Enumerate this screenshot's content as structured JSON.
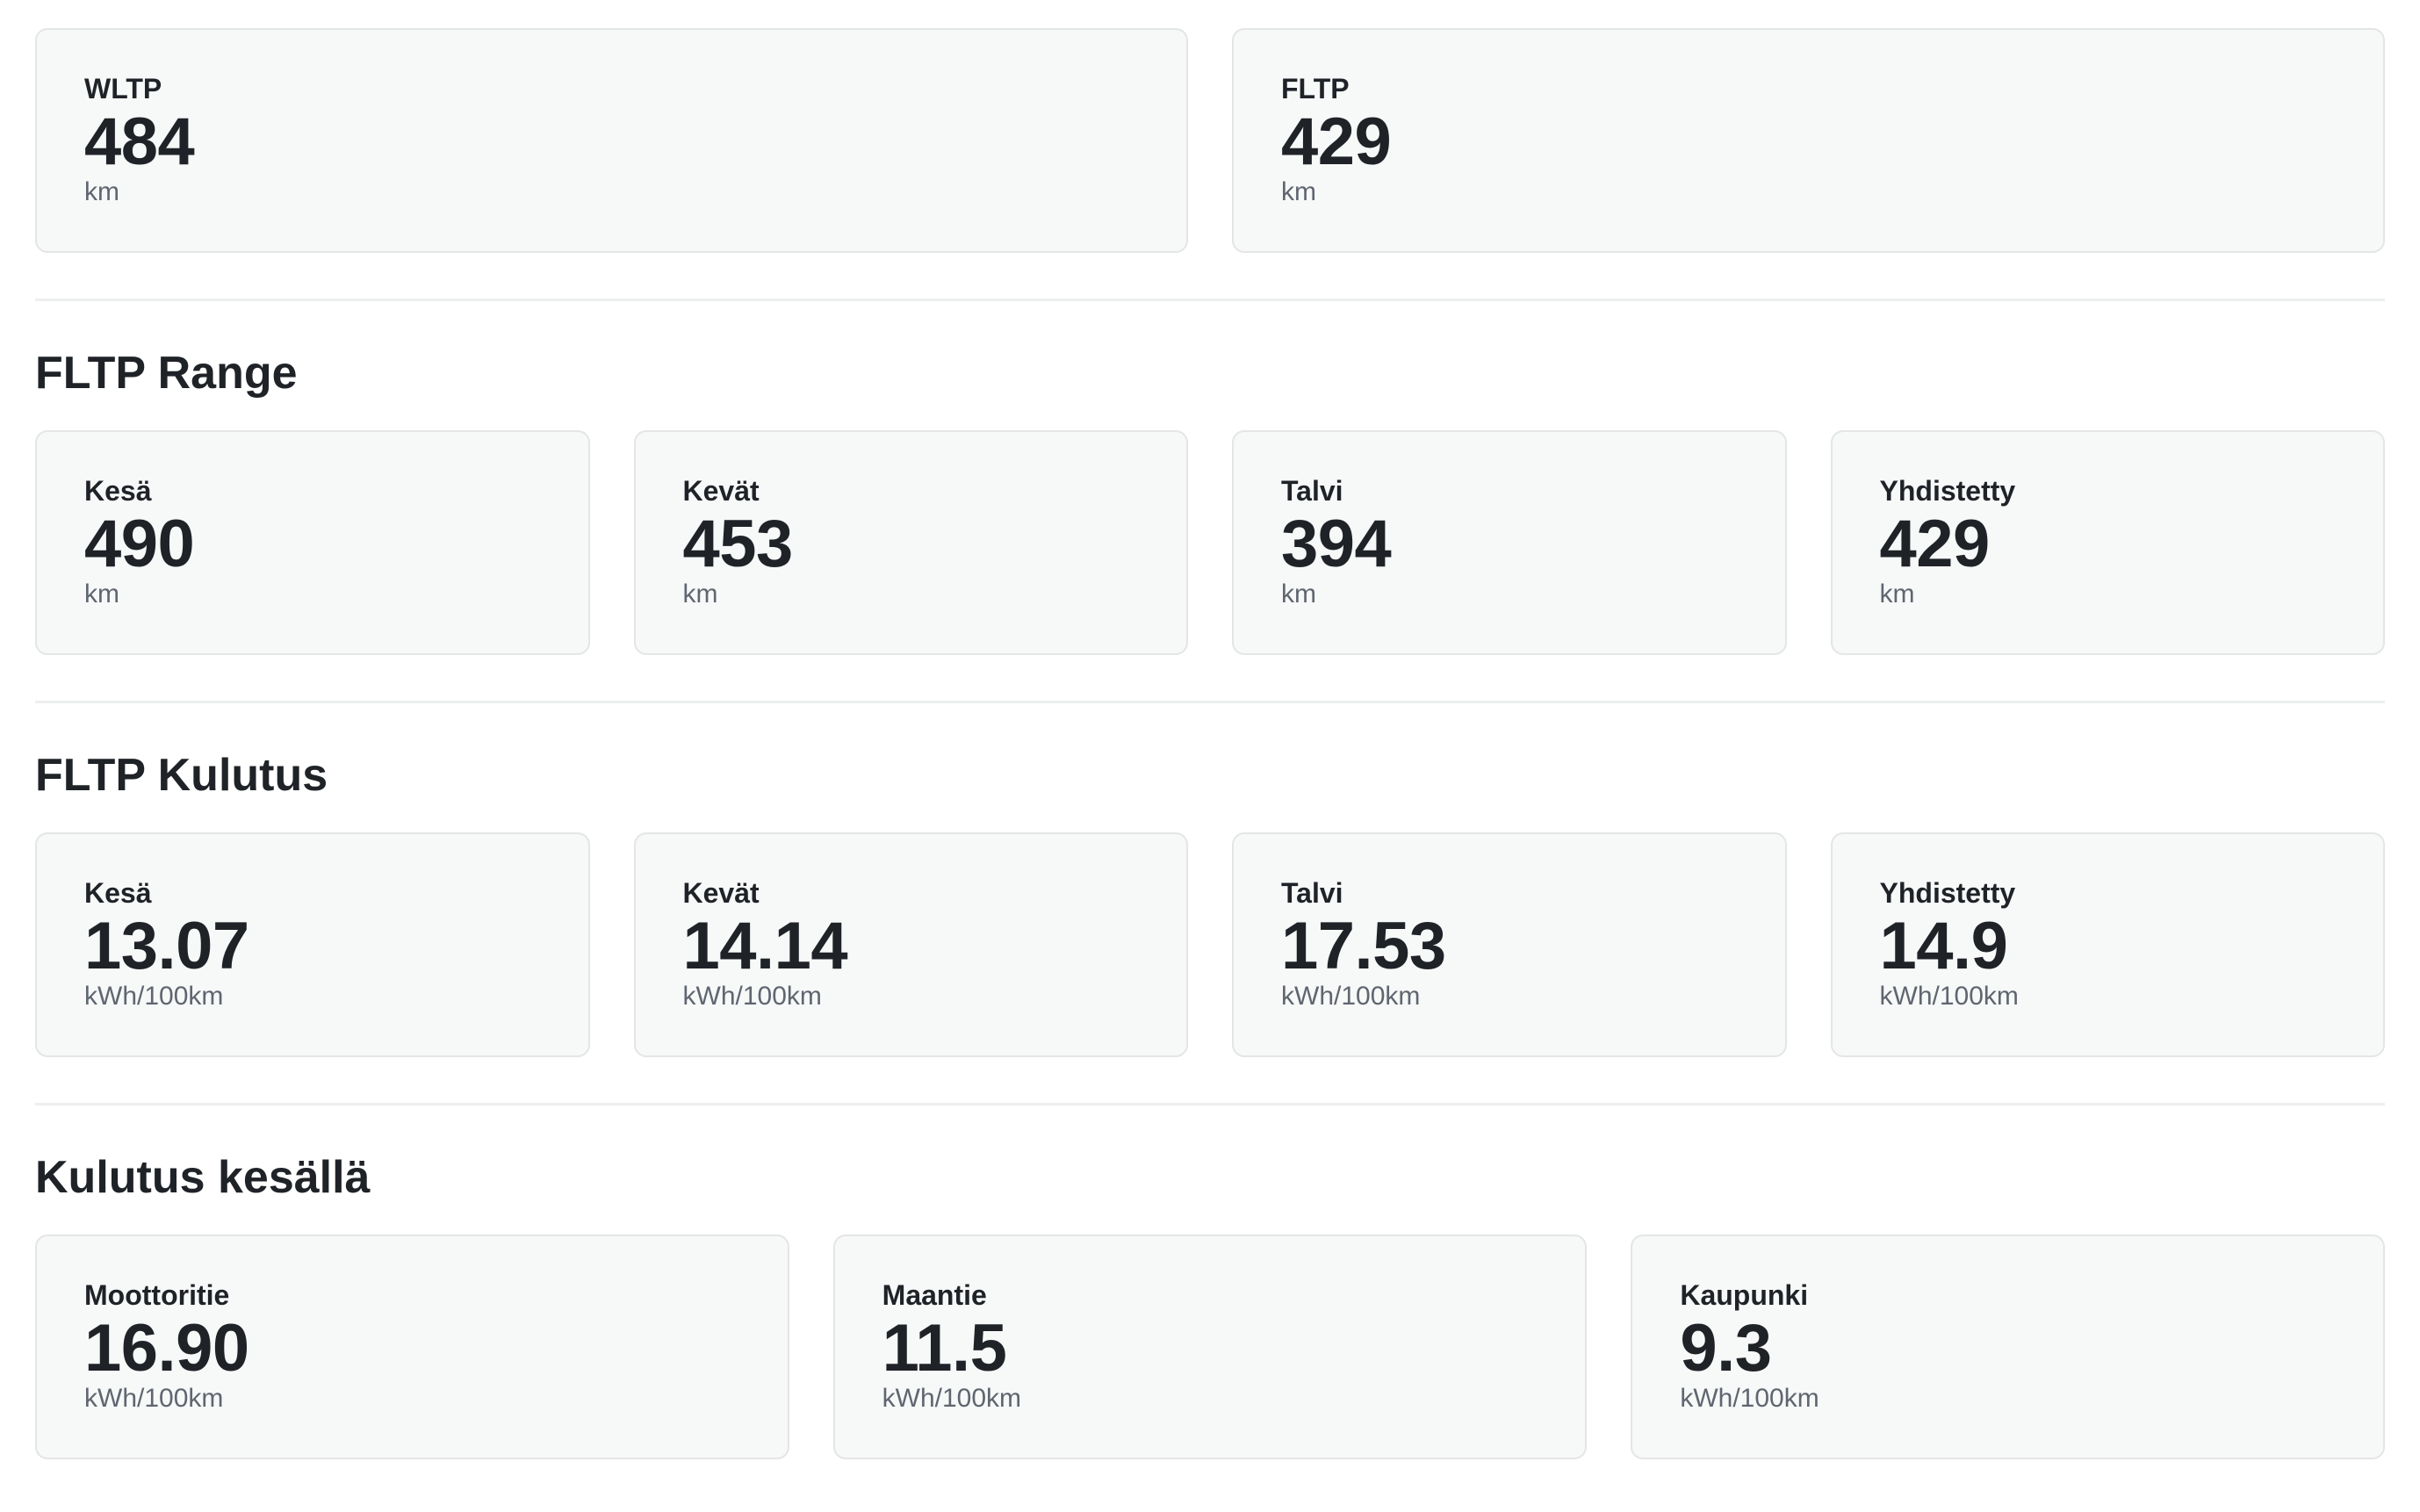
{
  "overview": {
    "cards": [
      {
        "label": "WLTP",
        "value": "484",
        "unit": "km"
      },
      {
        "label": "FLTP",
        "value": "429",
        "unit": "km"
      }
    ]
  },
  "fltp_range": {
    "title": "FLTP Range",
    "cards": [
      {
        "label": "Kesä",
        "value": "490",
        "unit": "km"
      },
      {
        "label": "Kevät",
        "value": "453",
        "unit": "km"
      },
      {
        "label": "Talvi",
        "value": "394",
        "unit": "km"
      },
      {
        "label": "Yhdistetty",
        "value": "429",
        "unit": "km"
      }
    ]
  },
  "fltp_consumption": {
    "title": "FLTP Kulutus",
    "cards": [
      {
        "label": "Kesä",
        "value": "13.07",
        "unit": "kWh/100km"
      },
      {
        "label": "Kevät",
        "value": "14.14",
        "unit": "kWh/100km"
      },
      {
        "label": "Talvi",
        "value": "17.53",
        "unit": "kWh/100km"
      },
      {
        "label": "Yhdistetty",
        "value": "14.9",
        "unit": "kWh/100km"
      }
    ]
  },
  "summer_consumption": {
    "title": "Kulutus kesällä",
    "cards": [
      {
        "label": "Moottoritie",
        "value": "16.90",
        "unit": "kWh/100km"
      },
      {
        "label": "Maantie",
        "value": "11.5",
        "unit": "kWh/100km"
      },
      {
        "label": "Kaupunki",
        "value": "9.3",
        "unit": "kWh/100km"
      }
    ]
  }
}
